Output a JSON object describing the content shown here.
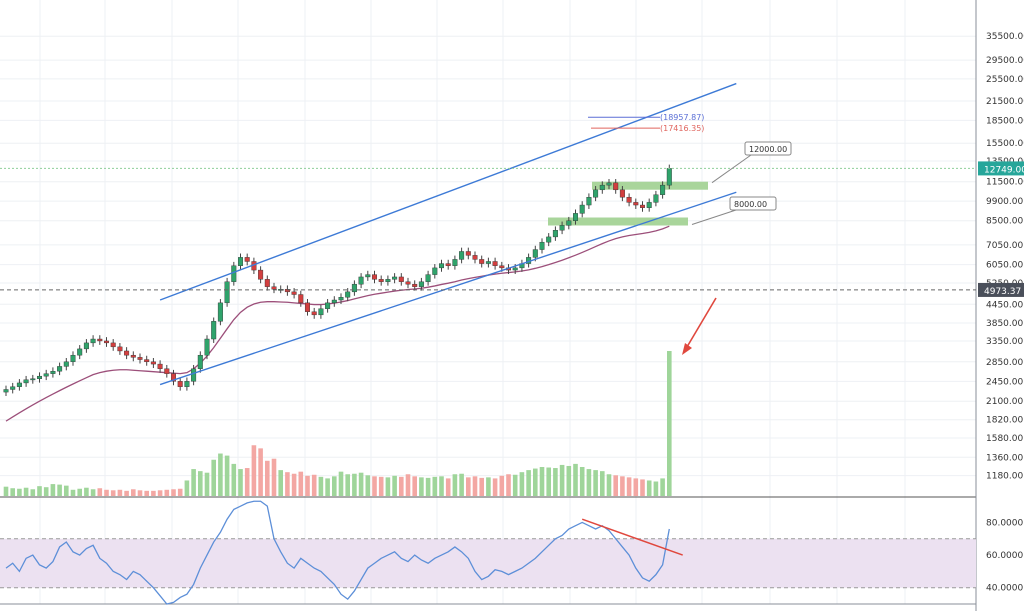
{
  "chart_data": {
    "type": "candlestick",
    "panes": {
      "price": {
        "scale": "log",
        "ylim": [
          1000,
          47000
        ],
        "grid": true,
        "ytick_labels": [
          "35500.00",
          "29500.00",
          "25500.00",
          "21500.00",
          "18500.00",
          "15500.00",
          "13500.00",
          "11500.00",
          "9900.00",
          "8500.00",
          "7050.00",
          "6050.00",
          "5250.00",
          "4450.00",
          "3850.00",
          "3350.00",
          "2850.00",
          "2450.00",
          "2100.00",
          "1820.00",
          "1580.00",
          "1360.00",
          "1180.00"
        ],
        "ytick_values": [
          35500,
          29500,
          25500,
          21500,
          18500,
          15500,
          13500,
          11500,
          9900,
          8500,
          7050,
          6050,
          5250,
          4450,
          3850,
          3350,
          2850,
          2450,
          2100,
          1820,
          1580,
          1360,
          1180
        ],
        "last_price": {
          "label": "12749.00",
          "value": 12749,
          "color": "#26a69a"
        },
        "level_marker": {
          "label": "4973.37",
          "value": 4973.37
        },
        "candles": {
          "count": 100,
          "closes": [
            2300,
            2350,
            2420,
            2480,
            2500,
            2550,
            2600,
            2650,
            2750,
            2850,
            3000,
            3150,
            3300,
            3400,
            3350,
            3300,
            3200,
            3100,
            3000,
            2950,
            2900,
            2850,
            2800,
            2700,
            2600,
            2450,
            2350,
            2450,
            2700,
            3000,
            3400,
            3900,
            4500,
            5300,
            6000,
            6400,
            6200,
            5800,
            5400,
            5100,
            5000,
            5000,
            4900,
            4800,
            4500,
            4200,
            4100,
            4300,
            4500,
            4600,
            4700,
            4900,
            5200,
            5500,
            5600,
            5400,
            5300,
            5400,
            5500,
            5300,
            5200,
            5100,
            5300,
            5600,
            5900,
            6100,
            6000,
            6300,
            6700,
            6500,
            6300,
            6100,
            6200,
            6000,
            5900,
            5800,
            5900,
            6100,
            6400,
            6800,
            7200,
            7500,
            7900,
            8200,
            8500,
            9000,
            9600,
            10200,
            10800,
            11200,
            11400,
            10800,
            10200,
            9800,
            9600,
            9400,
            9800,
            10400,
            11200,
            12749
          ],
          "volume": [
            180,
            150,
            140,
            160,
            130,
            190,
            170,
            230,
            220,
            200,
            120,
            140,
            160,
            130,
            150,
            120,
            110,
            120,
            100,
            130,
            110,
            100,
            100,
            110,
            120,
            130,
            140,
            300,
            520,
            480,
            450,
            700,
            820,
            780,
            620,
            520,
            540,
            980,
            920,
            680,
            720,
            500,
            460,
            430,
            470,
            390,
            410,
            370,
            340,
            380,
            470,
            420,
            430,
            450,
            400,
            380,
            370,
            360,
            390,
            370,
            420,
            380,
            360,
            350,
            370,
            380,
            340,
            420,
            430,
            360,
            380,
            350,
            360,
            340,
            390,
            420,
            410,
            460,
            500,
            530,
            560,
            550,
            540,
            600,
            580,
            620,
            560,
            520,
            500,
            480,
            420,
            400,
            380,
            360,
            340,
            320,
            300,
            280,
            340,
            2800
          ]
        },
        "moving_average": {
          "color": "#9c4f7a",
          "values": [
            1800,
            1860,
            1920,
            1980,
            2040,
            2100,
            2160,
            2220,
            2280,
            2340,
            2400,
            2460,
            2520,
            2580,
            2620,
            2650,
            2670,
            2680,
            2680,
            2670,
            2660,
            2650,
            2640,
            2630,
            2620,
            2610,
            2600,
            2620,
            2700,
            2820,
            2980,
            3180,
            3420,
            3680,
            3950,
            4180,
            4350,
            4460,
            4520,
            4540,
            4540,
            4530,
            4520,
            4500,
            4480,
            4460,
            4440,
            4440,
            4460,
            4490,
            4530,
            4580,
            4640,
            4700,
            4760,
            4810,
            4850,
            4890,
            4930,
            4960,
            4990,
            5010,
            5040,
            5080,
            5130,
            5190,
            5240,
            5300,
            5370,
            5430,
            5480,
            5530,
            5580,
            5620,
            5660,
            5690,
            5720,
            5760,
            5810,
            5880,
            5960,
            6050,
            6150,
            6260,
            6380,
            6510,
            6650,
            6800,
            6960,
            7120,
            7270,
            7400,
            7500,
            7580,
            7640,
            7700,
            7770,
            7860,
            7980,
            8150
          ]
        },
        "channel_lines": [
          {
            "color": "#3d7ad6",
            "points": [
              [
                "c23",
                4600
              ],
              [
                "c109",
                24600
              ]
            ]
          },
          {
            "color": "#3d7ad6",
            "points": [
              [
                "c23",
                2390
              ],
              [
                "c109",
                10600
              ]
            ]
          }
        ],
        "zones": [
          {
            "label": "12000.00",
            "value": 11150,
            "color": "#a9d59b"
          },
          {
            "label": "8000.00",
            "value": 8450,
            "color": "#a9d59b"
          }
        ],
        "annotations": [
          {
            "label": "(18957.87)",
            "value": 18957.87,
            "color": "#5b6fd6"
          },
          {
            "label": "(17416.35)",
            "value": 17416.35,
            "color": "#e0655e"
          }
        ]
      },
      "rsi": {
        "ylim": [
          30,
          95
        ],
        "ytick_labels": [
          "80.0000",
          "60.0000",
          "40.0000"
        ],
        "ytick_values": [
          80,
          60,
          40
        ],
        "band": [
          40,
          70
        ],
        "values": [
          52,
          55,
          50,
          58,
          60,
          54,
          52,
          56,
          65,
          68,
          62,
          60,
          64,
          66,
          58,
          55,
          50,
          48,
          45,
          50,
          48,
          44,
          40,
          35,
          30,
          31,
          34,
          36,
          42,
          52,
          60,
          68,
          74,
          82,
          88,
          90,
          92,
          93,
          93,
          90,
          70,
          62,
          55,
          52,
          58,
          55,
          52,
          50,
          46,
          42,
          36,
          33,
          38,
          45,
          52,
          55,
          58,
          60,
          62,
          58,
          56,
          60,
          57,
          55,
          58,
          60,
          62,
          65,
          62,
          58,
          50,
          45,
          47,
          51,
          50,
          48,
          50,
          52,
          55,
          58,
          62,
          66,
          70,
          72,
          76,
          78,
          80,
          78,
          76,
          78,
          75,
          70,
          65,
          60,
          52,
          46,
          44,
          48,
          54,
          76
        ],
        "divergence_line": {
          "color": "#e0483e",
          "points": [
            [
              86,
              82
            ],
            [
              101,
              60
            ]
          ]
        }
      }
    },
    "arrow": {
      "color": "#e0483e"
    }
  }
}
